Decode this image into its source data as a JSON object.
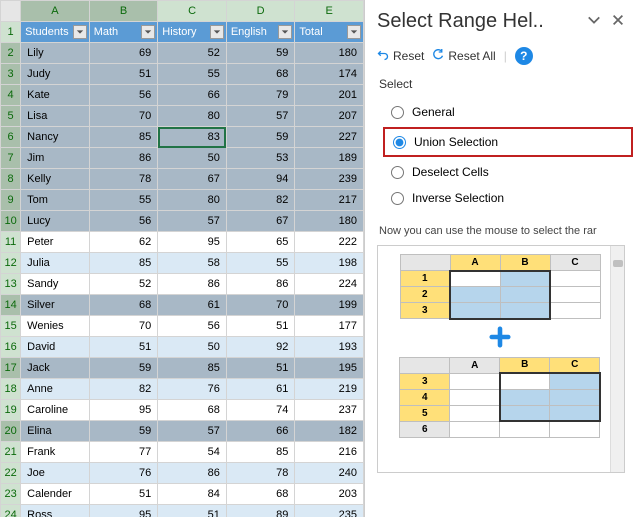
{
  "spreadsheet": {
    "col_headers": [
      "A",
      "B",
      "C",
      "D",
      "E"
    ],
    "row_headers": [
      1,
      2,
      3,
      4,
      5,
      6,
      7,
      8,
      9,
      10,
      11,
      12,
      13,
      14,
      15,
      16,
      17,
      18,
      19,
      20,
      21,
      22,
      23,
      24
    ],
    "selected_cols_dark": [
      0,
      1
    ],
    "selected_rows_dark": [
      2,
      3,
      4,
      5,
      6,
      7,
      8,
      9,
      10,
      14,
      17,
      20
    ],
    "table_headers": [
      "Students",
      "Math",
      "History",
      "English",
      "Total"
    ],
    "active_cell": {
      "row": 6,
      "col": 2
    },
    "rows": [
      {
        "name": "Lily",
        "math": 69,
        "history": 52,
        "english": 59,
        "total": 180,
        "sel": true
      },
      {
        "name": "Judy",
        "math": 51,
        "history": 55,
        "english": 68,
        "total": 174,
        "sel": true
      },
      {
        "name": "Kate",
        "math": 56,
        "history": 66,
        "english": 79,
        "total": 201,
        "sel": true
      },
      {
        "name": "Lisa",
        "math": 70,
        "history": 80,
        "english": 57,
        "total": 207,
        "sel": true
      },
      {
        "name": "Nancy",
        "math": 85,
        "history": 83,
        "english": 59,
        "total": 227,
        "sel": true
      },
      {
        "name": "Jim",
        "math": 86,
        "history": 50,
        "english": 53,
        "total": 189,
        "sel": true
      },
      {
        "name": "Kelly",
        "math": 78,
        "history": 67,
        "english": 94,
        "total": 239,
        "sel": true
      },
      {
        "name": "Tom",
        "math": 55,
        "history": 80,
        "english": 82,
        "total": 217,
        "sel": true
      },
      {
        "name": "Lucy",
        "math": 56,
        "history": 57,
        "english": 67,
        "total": 180,
        "sel": true
      },
      {
        "name": "Peter",
        "math": 62,
        "history": 95,
        "english": 65,
        "total": 222,
        "sel": false
      },
      {
        "name": "Julia",
        "math": 85,
        "history": 58,
        "english": 55,
        "total": 198,
        "sel": false
      },
      {
        "name": "Sandy",
        "math": 52,
        "history": 86,
        "english": 86,
        "total": 224,
        "sel": false
      },
      {
        "name": "Silver",
        "math": 68,
        "history": 61,
        "english": 70,
        "total": 199,
        "sel": true
      },
      {
        "name": "Wenies",
        "math": 70,
        "history": 56,
        "english": 51,
        "total": 177,
        "sel": false
      },
      {
        "name": "David",
        "math": 51,
        "history": 50,
        "english": 92,
        "total": 193,
        "sel": false
      },
      {
        "name": "Jack",
        "math": 59,
        "history": 85,
        "english": 51,
        "total": 195,
        "sel": true
      },
      {
        "name": "Anne",
        "math": 82,
        "history": 76,
        "english": 61,
        "total": 219,
        "sel": false
      },
      {
        "name": "Caroline",
        "math": 95,
        "history": 68,
        "english": 74,
        "total": 237,
        "sel": false
      },
      {
        "name": "Elina",
        "math": 59,
        "history": 57,
        "english": 66,
        "total": 182,
        "sel": true
      },
      {
        "name": "Frank",
        "math": 77,
        "history": 54,
        "english": 85,
        "total": 216,
        "sel": false
      },
      {
        "name": "Joe",
        "math": 76,
        "history": 86,
        "english": 78,
        "total": 240,
        "sel": false
      },
      {
        "name": "Calender",
        "math": 51,
        "history": 84,
        "english": 68,
        "total": 203,
        "sel": false
      },
      {
        "name": "Ross",
        "math": 95,
        "history": 51,
        "english": 89,
        "total": 235,
        "sel": false
      }
    ]
  },
  "panel": {
    "title": "Select Range Hel..",
    "reset": "Reset",
    "reset_all": "Reset All",
    "section": "Select",
    "options": {
      "general": "General",
      "union": "Union Selection",
      "deselect": "Deselect Cells",
      "inverse": "Inverse Selection"
    },
    "selected": "union",
    "hint": "Now you can use the mouse to select the rar",
    "preview": {
      "top_cols": [
        "A",
        "B",
        "C"
      ],
      "top_rows": [
        "1",
        "2",
        "3"
      ],
      "bottom_cols": [
        "A",
        "B",
        "C"
      ],
      "bottom_rows": [
        "3",
        "4",
        "5",
        "6"
      ]
    }
  }
}
